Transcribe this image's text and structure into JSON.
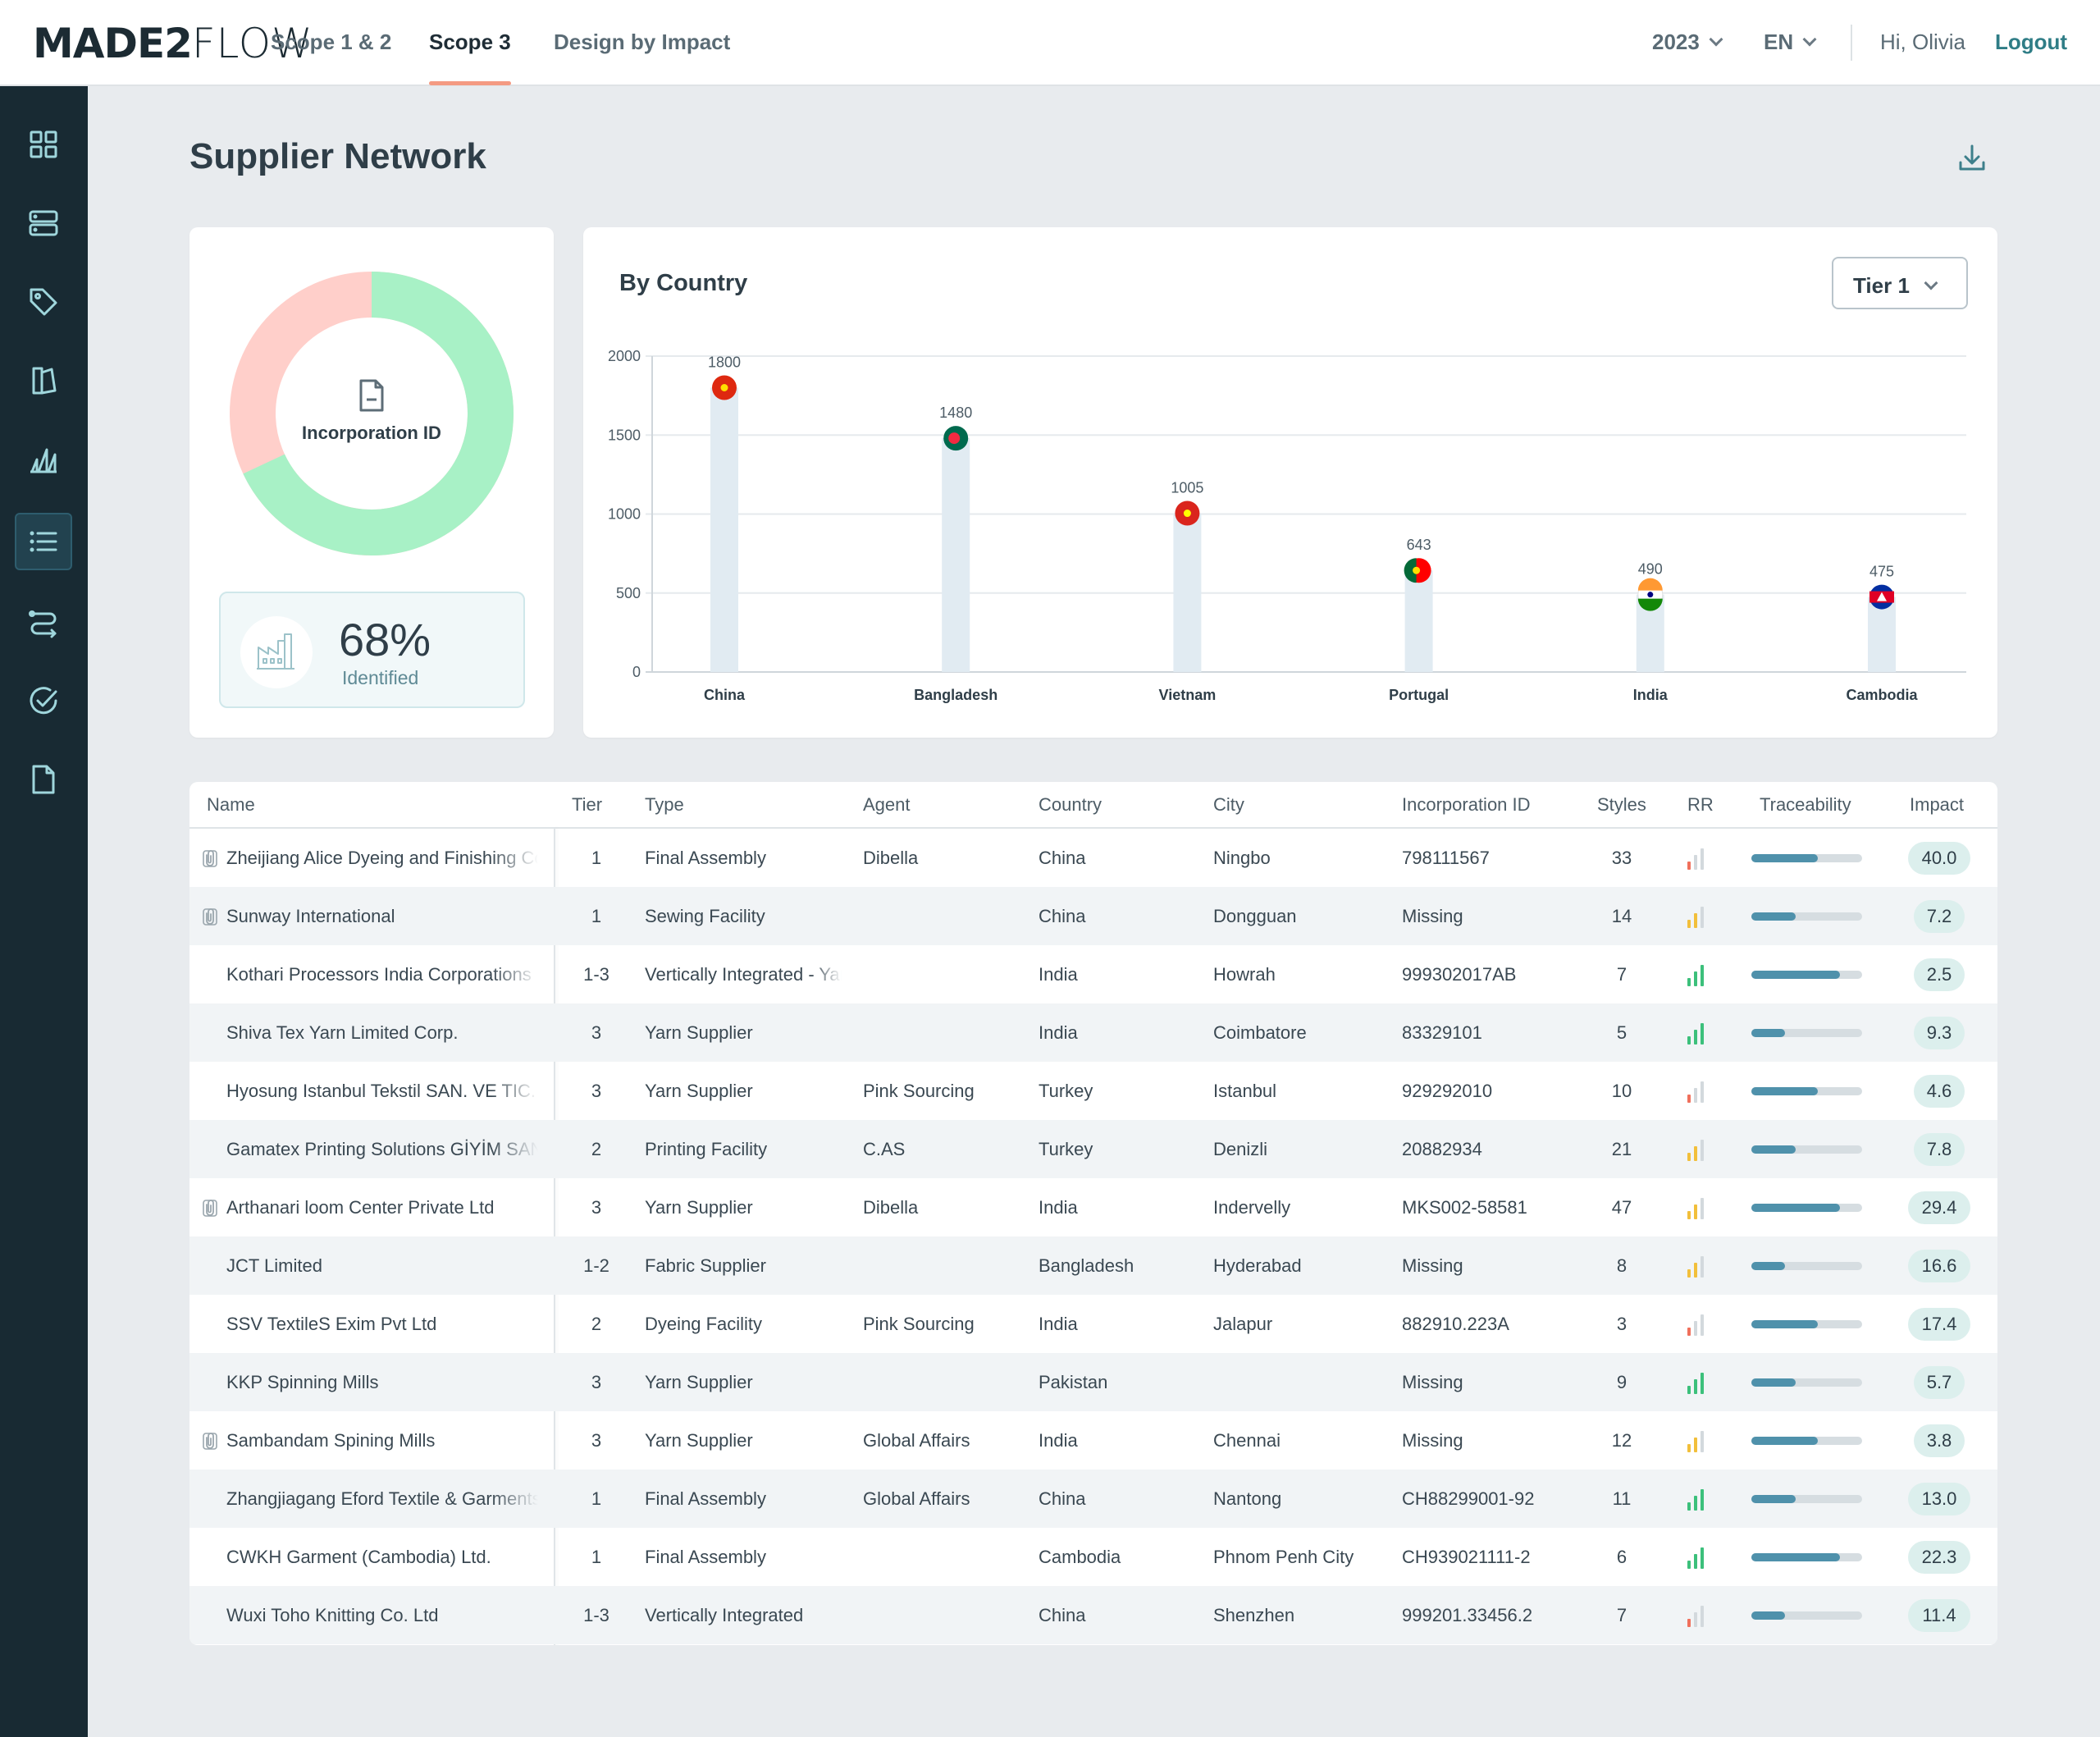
{
  "header": {
    "logo_bold": "MADE2",
    "logo_light": "FLOW",
    "tabs": [
      {
        "label": "Scope 1 & 2",
        "active": false
      },
      {
        "label": "Scope 3",
        "active": true
      },
      {
        "label": "Design by Impact",
        "active": false
      }
    ],
    "year": "2023",
    "language": "EN",
    "greeting": "Hi, Olivia",
    "logout": "Logout"
  },
  "sidebar": {
    "items": [
      {
        "icon": "grid-icon",
        "active": false
      },
      {
        "icon": "database-icon",
        "active": false
      },
      {
        "icon": "tag-icon",
        "active": false
      },
      {
        "icon": "book-icon",
        "active": false
      },
      {
        "icon": "chart-icon",
        "active": false
      },
      {
        "icon": "list-icon",
        "active": true
      },
      {
        "icon": "flow-icon",
        "active": false
      },
      {
        "icon": "check-circle-icon",
        "active": false
      },
      {
        "icon": "document-icon",
        "active": false
      }
    ]
  },
  "page": {
    "title": "Supplier Network"
  },
  "donut": {
    "center_label": "Incorporation ID",
    "identified_fraction": 0.68,
    "color_identified": "#a8f1c6",
    "color_missing": "#ffcfca",
    "percent": "68%",
    "percent_label": "Identified"
  },
  "chart_data": {
    "type": "bar",
    "title": "By Country",
    "filter": "Tier 1",
    "categories": [
      "China",
      "Bangladesh",
      "Vietnam",
      "Portugal",
      "India",
      "Cambodia"
    ],
    "values": [
      1800,
      1480,
      1005,
      643,
      490,
      475
    ],
    "value_labels": [
      "1800",
      "1480",
      "1005",
      "643",
      "490",
      "475"
    ],
    "ylim": [
      0,
      2000
    ],
    "yticks": [
      0,
      500,
      1000,
      1500,
      2000
    ],
    "ytick_labels": [
      "0",
      "500",
      "1000",
      "1500",
      "2000"
    ],
    "grid": true,
    "bar_color": "#e1ebf2"
  },
  "table": {
    "columns": [
      "Name",
      "Tier",
      "Type",
      "Agent",
      "Country",
      "City",
      "Incorporation ID",
      "Styles",
      "RR",
      "Traceability",
      "Impact"
    ],
    "rows": [
      {
        "attached": true,
        "name": "Zheijiang Alice Dyeing and Finishing Co.",
        "tier": "1",
        "type": "Final Assembly",
        "agent": "Dibella",
        "country": "China",
        "city": "Ningbo",
        "inc_id": "798111567",
        "styles": "33",
        "rr": 1,
        "trace": 0.6,
        "impact": "40.0"
      },
      {
        "attached": true,
        "name": "Sunway International",
        "tier": "1",
        "type": "Sewing Facility",
        "agent": "",
        "country": "China",
        "city": "Dongguan",
        "inc_id": "Missing",
        "styles": "14",
        "rr": 2,
        "trace": 0.4,
        "impact": "7.2"
      },
      {
        "attached": false,
        "name": "Kothari Processors India Corporations",
        "tier": "1-3",
        "type": "Vertically Integrated - Yarn",
        "agent": "",
        "country": "India",
        "city": "Howrah",
        "inc_id": "999302017AB",
        "styles": "7",
        "rr": 3,
        "trace": 0.8,
        "impact": "2.5"
      },
      {
        "attached": false,
        "name": "Shiva Tex Yarn Limited Corp.",
        "tier": "3",
        "type": "Yarn Supplier",
        "agent": "",
        "country": "India",
        "city": "Coimbatore",
        "inc_id": "83329101",
        "styles": "5",
        "rr": 3,
        "trace": 0.3,
        "impact": "9.3"
      },
      {
        "attached": false,
        "name": "Hyosung Istanbul Tekstil SAN. VE TIC.",
        "tier": "3",
        "type": "Yarn Supplier",
        "agent": "Pink Sourcing",
        "country": "Turkey",
        "city": "Istanbul",
        "inc_id": "929292010",
        "styles": "10",
        "rr": 1,
        "trace": 0.6,
        "impact": "4.6"
      },
      {
        "attached": false,
        "name": "Gamatex Printing Solutions GİYİM SAN.",
        "tier": "2",
        "type": "Printing Facility",
        "agent": "C.AS",
        "country": "Turkey",
        "city": "Denizli",
        "inc_id": "20882934",
        "styles": "21",
        "rr": 2,
        "trace": 0.4,
        "impact": "7.8"
      },
      {
        "attached": true,
        "name": "Arthanari loom Center Private Ltd",
        "tier": "3",
        "type": "Yarn Supplier",
        "agent": "Dibella",
        "country": "India",
        "city": "Indervelly",
        "inc_id": "MKS002-58581",
        "styles": "47",
        "rr": 2,
        "trace": 0.8,
        "impact": "29.4"
      },
      {
        "attached": false,
        "name": "JCT Limited",
        "tier": "1-2",
        "type": "Fabric Supplier",
        "agent": "",
        "country": "Bangladesh",
        "city": "Hyderabad",
        "inc_id": "Missing",
        "styles": "8",
        "rr": 2,
        "trace": 0.3,
        "impact": "16.6"
      },
      {
        "attached": false,
        "name": "SSV TextileS Exim Pvt Ltd",
        "tier": "2",
        "type": "Dyeing Facility",
        "agent": "Pink Sourcing",
        "country": "India",
        "city": "Jalapur",
        "inc_id": "882910.223A",
        "styles": "3",
        "rr": 1,
        "trace": 0.6,
        "impact": "17.4"
      },
      {
        "attached": false,
        "name": "KKP Spinning Mills",
        "tier": "3",
        "type": "Yarn Supplier",
        "agent": "",
        "country": "Pakistan",
        "city": "",
        "inc_id": "Missing",
        "styles": "9",
        "rr": 3,
        "trace": 0.4,
        "impact": "5.7"
      },
      {
        "attached": true,
        "name": "Sambandam Spining Mills",
        "tier": "3",
        "type": "Yarn Supplier",
        "agent": "Global Affairs",
        "country": "India",
        "city": "Chennai",
        "inc_id": "Missing",
        "styles": "12",
        "rr": 2,
        "trace": 0.6,
        "impact": "3.8"
      },
      {
        "attached": false,
        "name": "Zhangjiagang Eford Textile & Garments",
        "tier": "1",
        "type": "Final Assembly",
        "agent": "Global Affairs",
        "country": "China",
        "city": "Nantong",
        "inc_id": "CH88299001-92",
        "styles": "11",
        "rr": 3,
        "trace": 0.4,
        "impact": "13.0"
      },
      {
        "attached": false,
        "name": "CWKH Garment (Cambodia) Ltd.",
        "tier": "1",
        "type": "Final Assembly",
        "agent": "",
        "country": "Cambodia",
        "city": "Phnom Penh City",
        "inc_id": "CH939021111-2",
        "styles": "6",
        "rr": 3,
        "trace": 0.8,
        "impact": "22.3"
      },
      {
        "attached": false,
        "name": "Wuxi Toho Knitting Co. Ltd",
        "tier": "1-3",
        "type": "Vertically Integrated",
        "agent": "",
        "country": "China",
        "city": "Shenzhen",
        "inc_id": "999201.33456.2",
        "styles": "7",
        "rr": 1,
        "trace": 0.3,
        "impact": "11.4"
      }
    ]
  }
}
